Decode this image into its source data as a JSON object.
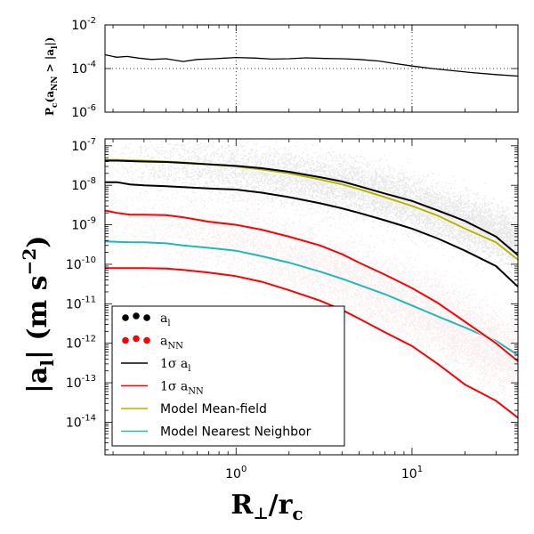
{
  "chart_data": [
    {
      "type": "line",
      "panel": "top",
      "ylabel_main": "P",
      "ylabel_sub": "c",
      "ylabel_rest": "(a",
      "ylabel_rest_sub": "NN",
      "ylabel_tail": " > |a",
      "ylabel_tail_sub": "l",
      "ylabel_end": "|)",
      "xscale": "log",
      "yscale": "log",
      "xlim": [
        0.18,
        40
      ],
      "ylim": [
        1e-06,
        0.01
      ],
      "yticks": [
        {
          "value": 0.01,
          "base": "10",
          "exp": "-2"
        },
        {
          "value": 0.0001,
          "base": "10",
          "exp": "-4"
        },
        {
          "value": 1e-06,
          "base": "10",
          "exp": "-6"
        }
      ],
      "dotted_refs": {
        "x": [
          1,
          10
        ],
        "y": 0.0001
      },
      "series": [
        {
          "color": "#000000",
          "x": [
            0.18,
            0.21,
            0.24,
            0.28,
            0.33,
            0.4,
            0.5,
            0.6,
            0.75,
            1.0,
            1.3,
            1.6,
            2.0,
            2.5,
            3.2,
            4.0,
            5.0,
            6.5,
            8.0,
            10,
            13,
            17,
            22,
            30,
            40
          ],
          "y": [
            0.00043,
            0.00033,
            0.00036,
            0.0003,
            0.00026,
            0.00028,
            0.00021,
            0.00026,
            0.00028,
            0.00032,
            0.0003,
            0.00027,
            0.00028,
            0.00031,
            0.00029,
            0.00028,
            0.00026,
            0.00022,
            0.00017,
            0.00013,
            0.0001,
            8e-05,
            6.5e-05,
            5.3e-05,
            4.5e-05
          ]
        }
      ]
    },
    {
      "type": "scatter",
      "panel": "bottom",
      "xlabel_main": "R",
      "xlabel_perp": "⊥",
      "xlabel_slash": "/r",
      "xlabel_sub": "c",
      "ylabel_main": "|a",
      "ylabel_sub": "l",
      "ylabel_unit": "| (m s",
      "ylabel_exp": "−2",
      "ylabel_end": ")",
      "xscale": "log",
      "yscale": "log",
      "xlim": [
        0.18,
        40
      ],
      "ylim": [
        1.5e-15,
        1.5e-07
      ],
      "xticks": [
        {
          "value": 1,
          "base": "10",
          "exp": "0"
        },
        {
          "value": 10,
          "base": "10",
          "exp": "1"
        }
      ],
      "yticks": [
        {
          "value": 1e-07,
          "base": "10",
          "exp": "-7"
        },
        {
          "value": 1e-08,
          "base": "10",
          "exp": "-8"
        },
        {
          "value": 1e-09,
          "base": "10",
          "exp": "-9"
        },
        {
          "value": 1e-10,
          "base": "10",
          "exp": "-10"
        },
        {
          "value": 1e-11,
          "base": "10",
          "exp": "-11"
        },
        {
          "value": 1e-12,
          "base": "10",
          "exp": "-12"
        },
        {
          "value": 1e-13,
          "base": "10",
          "exp": "-13"
        },
        {
          "value": 1e-14,
          "base": "10",
          "exp": "-14"
        }
      ],
      "x_grid": [
        0.18,
        0.21,
        0.25,
        0.3,
        0.4,
        0.5,
        0.7,
        1.0,
        1.4,
        2.0,
        3.0,
        4.0,
        5.0,
        7.0,
        10,
        14,
        20,
        30,
        40
      ],
      "scatter_clouds": [
        {
          "key": "a_l",
          "color": "#000000",
          "median": [
            3.8e-08,
            3.8e-08,
            3.7e-08,
            3.6e-08,
            3.4e-08,
            3.2e-08,
            2.8e-08,
            2.4e-08,
            2e-08,
            1.6e-08,
            1.2e-08,
            9.5e-09,
            7.5e-09,
            5.2e-09,
            3.4e-09,
            2e-09,
            1.1e-09,
            6e-10,
            3.5e-10
          ],
          "spread_dex": 0.7
        },
        {
          "key": "a_NN",
          "color": "#b40000",
          "median": [
            1e-09,
            9.5e-10,
            9e-10,
            8.5e-10,
            7.5e-10,
            6.5e-10,
            5e-10,
            3.8e-10,
            2.6e-10,
            1.6e-10,
            8.5e-11,
            5.3e-11,
            3.5e-11,
            1.8e-11,
            8.5e-12,
            4e-12,
            1.7e-12,
            6.5e-13,
            3.5e-13
          ],
          "spread_dex": 1.0
        }
      ],
      "series": [
        {
          "key": "l_upper",
          "color": "#000000",
          "y": [
            4.2e-08,
            4.2e-08,
            4.1e-08,
            4e-08,
            3.9e-08,
            3.7e-08,
            3.4e-08,
            3.1e-08,
            2.7e-08,
            2.2e-08,
            1.6e-08,
            1.25e-08,
            9.5e-09,
            6.2e-09,
            4e-09,
            2.3e-09,
            1.25e-09,
            5e-10,
            1.7e-10
          ]
        },
        {
          "key": "l_lower",
          "color": "#000000",
          "y": [
            1.2e-08,
            1.2e-08,
            1.05e-08,
            1e-08,
            9.5e-09,
            9e-09,
            8.3e-09,
            7.8e-09,
            6.5e-09,
            5e-09,
            3.5e-09,
            2.6e-09,
            2e-09,
            1.3e-09,
            8e-10,
            4.5e-10,
            2.2e-10,
            9e-11,
            2.7e-11
          ]
        },
        {
          "key": "nn_upper",
          "color": "#ff0000",
          "y": [
            2.3e-09,
            2e-09,
            1.8e-09,
            1.8e-09,
            1.75e-09,
            1.55e-09,
            1.2e-09,
            1e-09,
            7.5e-10,
            5e-10,
            3e-10,
            1.8e-10,
            1.1e-10,
            5.5e-11,
            2.5e-11,
            1.05e-11,
            3.5e-12,
            1e-12,
            3.5e-13
          ]
        },
        {
          "key": "nn_lower",
          "color": "#ff0000",
          "y": [
            8e-11,
            8e-11,
            8e-11,
            8e-11,
            7.8e-11,
            7.2e-11,
            6.2e-11,
            5e-11,
            3.6e-11,
            2.2e-11,
            1.2e-11,
            7e-12,
            4.2e-12,
            1.9e-12,
            8.5e-13,
            3e-13,
            9e-14,
            3.5e-14,
            1.3e-14
          ]
        },
        {
          "key": "model_mf",
          "color": "#b5b500",
          "y": [
            4.4e-08,
            4.4e-08,
            4.3e-08,
            4.2e-08,
            4e-08,
            3.8e-08,
            3.4e-08,
            3e-08,
            2.5e-08,
            2e-08,
            1.4e-08,
            1.05e-08,
            8e-09,
            5e-09,
            3e-09,
            1.7e-09,
            8e-10,
            3.6e-10,
            1.3e-10
          ]
        },
        {
          "key": "model_nn",
          "color": "#20b8b8",
          "y": [
            3.8e-10,
            3.7e-10,
            3.6e-10,
            3.6e-10,
            3.4e-10,
            3e-10,
            2.6e-10,
            2.2e-10,
            1.6e-10,
            1.1e-10,
            6.5e-11,
            4.3e-11,
            3e-11,
            1.75e-11,
            9e-12,
            4.8e-12,
            2.5e-12,
            1.15e-12,
            5e-13
          ]
        }
      ],
      "legend": {
        "placement": "lower-left",
        "entries": [
          {
            "kind": "dots",
            "color": "#000000",
            "label": "a",
            "sub": "l"
          },
          {
            "kind": "dots",
            "color": "#ff0000",
            "label": "a",
            "sub": "NN"
          },
          {
            "kind": "line",
            "color": "#000000",
            "label": "1σ a",
            "sub": "l"
          },
          {
            "kind": "line",
            "color": "#ff0000",
            "label": "1σ a",
            "sub": "NN"
          },
          {
            "kind": "line",
            "color": "#b5b500",
            "label": "Model Mean-field",
            "sub": ""
          },
          {
            "kind": "line",
            "color": "#20b8b8",
            "label": "Model Nearest Neighbor",
            "sub": ""
          }
        ]
      }
    }
  ]
}
